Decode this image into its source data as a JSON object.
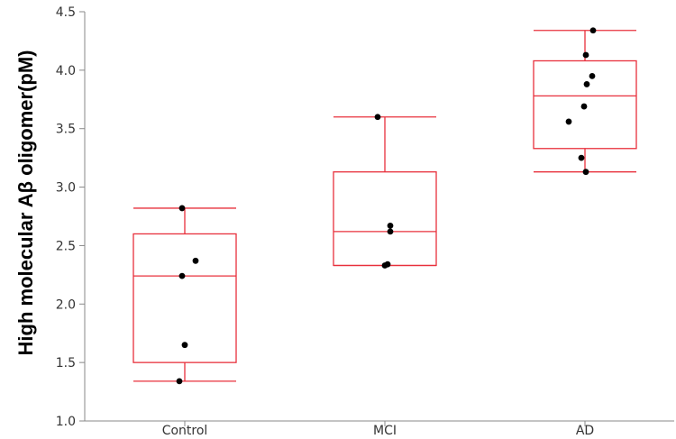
{
  "chart_data": {
    "type": "box",
    "title": "",
    "ylabel": "High molecular Aβ oligomer(pM)",
    "xlabel": "",
    "ylim": [
      1.0,
      4.5
    ],
    "yticks": [
      "1.0",
      "1.5",
      "2.0",
      "2.5",
      "3.0",
      "3.5",
      "4.0",
      "4.5"
    ],
    "categories": [
      "Control",
      "MCI",
      "AD"
    ],
    "grid": false,
    "groups": [
      {
        "category": "Control",
        "min": 1.34,
        "q1": 1.5,
        "median": 2.24,
        "q3": 2.6,
        "max": 2.82,
        "points": [
          2.82,
          2.37,
          2.24,
          1.65,
          1.34
        ]
      },
      {
        "category": "MCI",
        "min": 2.33,
        "q1": 2.33,
        "median": 2.62,
        "q3": 3.13,
        "max": 3.6,
        "points": [
          3.6,
          2.67,
          2.62,
          2.34,
          2.33
        ]
      },
      {
        "category": "AD",
        "min": 3.13,
        "q1": 3.33,
        "median": 3.78,
        "q3": 4.08,
        "max": 4.34,
        "points": [
          4.34,
          4.13,
          3.95,
          3.88,
          3.69,
          3.56,
          3.25,
          3.13
        ]
      }
    ],
    "colors": {
      "box": "#e8303c",
      "point": "#000000",
      "axis": "#888888",
      "text": "#333333"
    }
  }
}
